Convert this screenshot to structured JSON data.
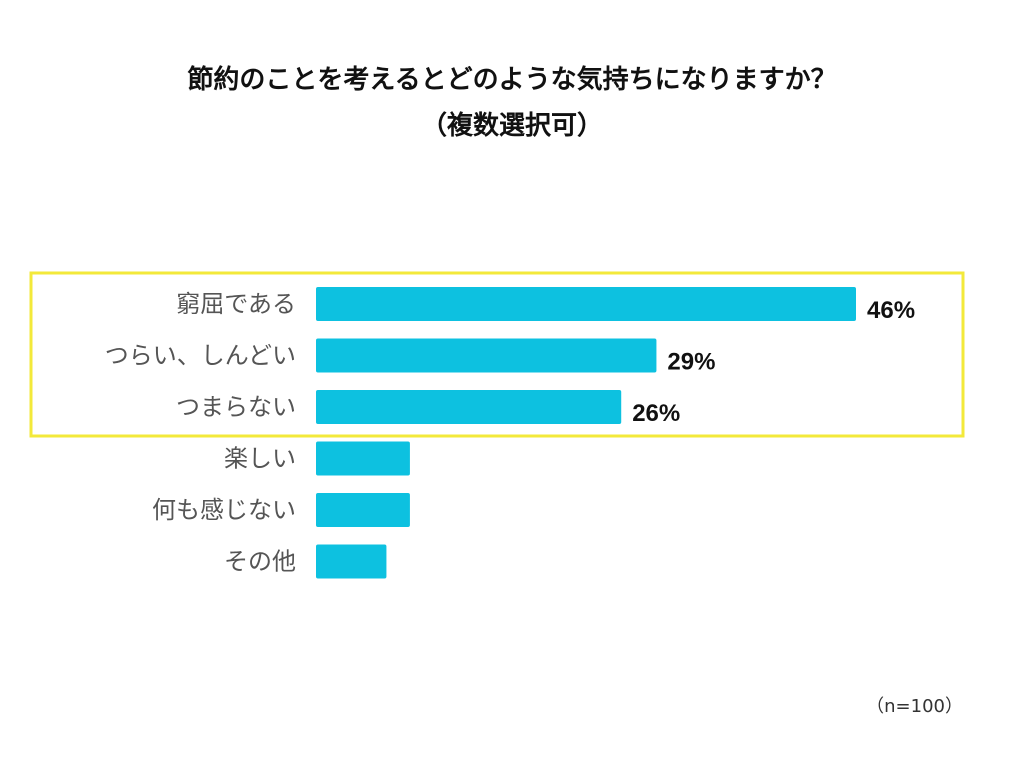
{
  "chart_data": {
    "type": "bar",
    "orientation": "horizontal",
    "title": "節約のことを考えるとどのような気持ちになりますか？",
    "subtitle": "（複数選択可）",
    "categories": [
      "窮屈である",
      "つらい、しんどい",
      "つまらない",
      "楽しい",
      "何も感じない",
      "その他"
    ],
    "values": [
      46,
      29,
      26,
      8,
      8,
      6
    ],
    "value_labels": [
      "46%",
      "29%",
      "26%",
      "",
      "",
      ""
    ],
    "highlighted_categories": [
      "窮屈である",
      "つらい、しんどい",
      "つまらない"
    ],
    "note": "（n=100）",
    "xlim": [
      0,
      46
    ],
    "grid": false,
    "legend": "none"
  },
  "colors": {
    "bar": "#0DC1E0",
    "highlight_box": "#F3E93A",
    "title_text": "#111111",
    "label_text": "#555555"
  }
}
